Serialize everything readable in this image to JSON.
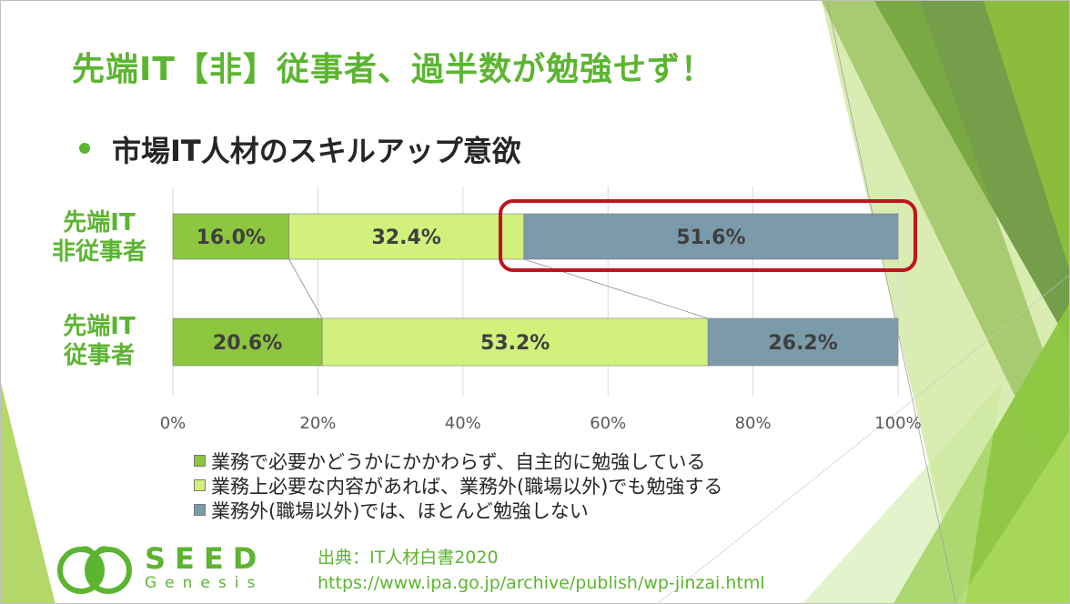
{
  "slide": {
    "title": "先端IT【非】従事者、過半数が勉強せず！",
    "subtitle": "市場IT人材のスキルアップ意欲"
  },
  "chart_data": {
    "type": "bar",
    "orientation": "horizontal",
    "stacked": true,
    "percent_stacked": true,
    "categories": [
      "先端IT非従事者",
      "先端IT従事者"
    ],
    "category_labels": [
      [
        "先端IT",
        "非従事者"
      ],
      [
        "先端IT",
        "従事者"
      ]
    ],
    "series": [
      {
        "name": "業務で必要かどうかにかかわらず、自主的に勉強している",
        "values": [
          16.0,
          20.6
        ],
        "labels": [
          "16.0%",
          "20.6%"
        ],
        "color": "#8dc63f"
      },
      {
        "name": "業務上必要な内容があれば、業務外(職場以外)でも勉強する",
        "values": [
          32.4,
          53.2
        ],
        "labels": [
          "32.4%",
          "53.2%"
        ],
        "color": "#d1f07c"
      },
      {
        "name": "業務外(職場以外)では、ほとんど勉強しない",
        "values": [
          51.6,
          26.2
        ],
        "labels": [
          "51.6%",
          "26.2%"
        ],
        "color": "#7b9aaa"
      }
    ],
    "xlim": [
      0,
      100
    ],
    "x_ticks": [
      "0%",
      "20%",
      "40%",
      "60%",
      "80%",
      "100%"
    ],
    "grid": true,
    "legend_position": "bottom",
    "highlighted": "先端IT非従事者 51.6%"
  },
  "logo": {
    "name": "SEED",
    "sub": "Genesis"
  },
  "source": {
    "line1": "出典：IT人材白書2020",
    "line2": "https://www.ipa.go.jp/archive/publish/wp-jinzai.html"
  },
  "colors": {
    "accent": "#5cb531",
    "highlight_border": "#c0141c"
  }
}
